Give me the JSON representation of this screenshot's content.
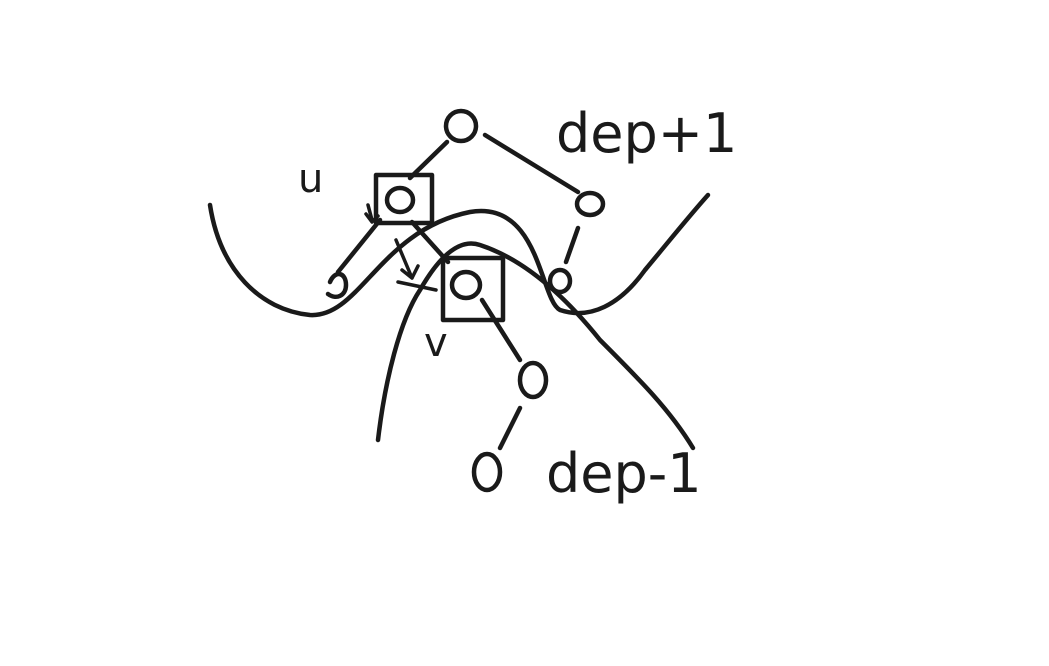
{
  "diagram": {
    "labels": {
      "u": "u",
      "v": "v",
      "dep_plus": "dep+1",
      "dep_minus": "dep-1"
    },
    "colors": {
      "ink": "#1a1a1a",
      "background": "#ffffff"
    },
    "nodes": [
      {
        "id": "top"
      },
      {
        "id": "u",
        "boxed": true
      },
      {
        "id": "right-upper"
      },
      {
        "id": "left-child"
      },
      {
        "id": "v",
        "boxed": true
      },
      {
        "id": "right-middle"
      },
      {
        "id": "lower-right"
      },
      {
        "id": "bottom"
      }
    ]
  }
}
